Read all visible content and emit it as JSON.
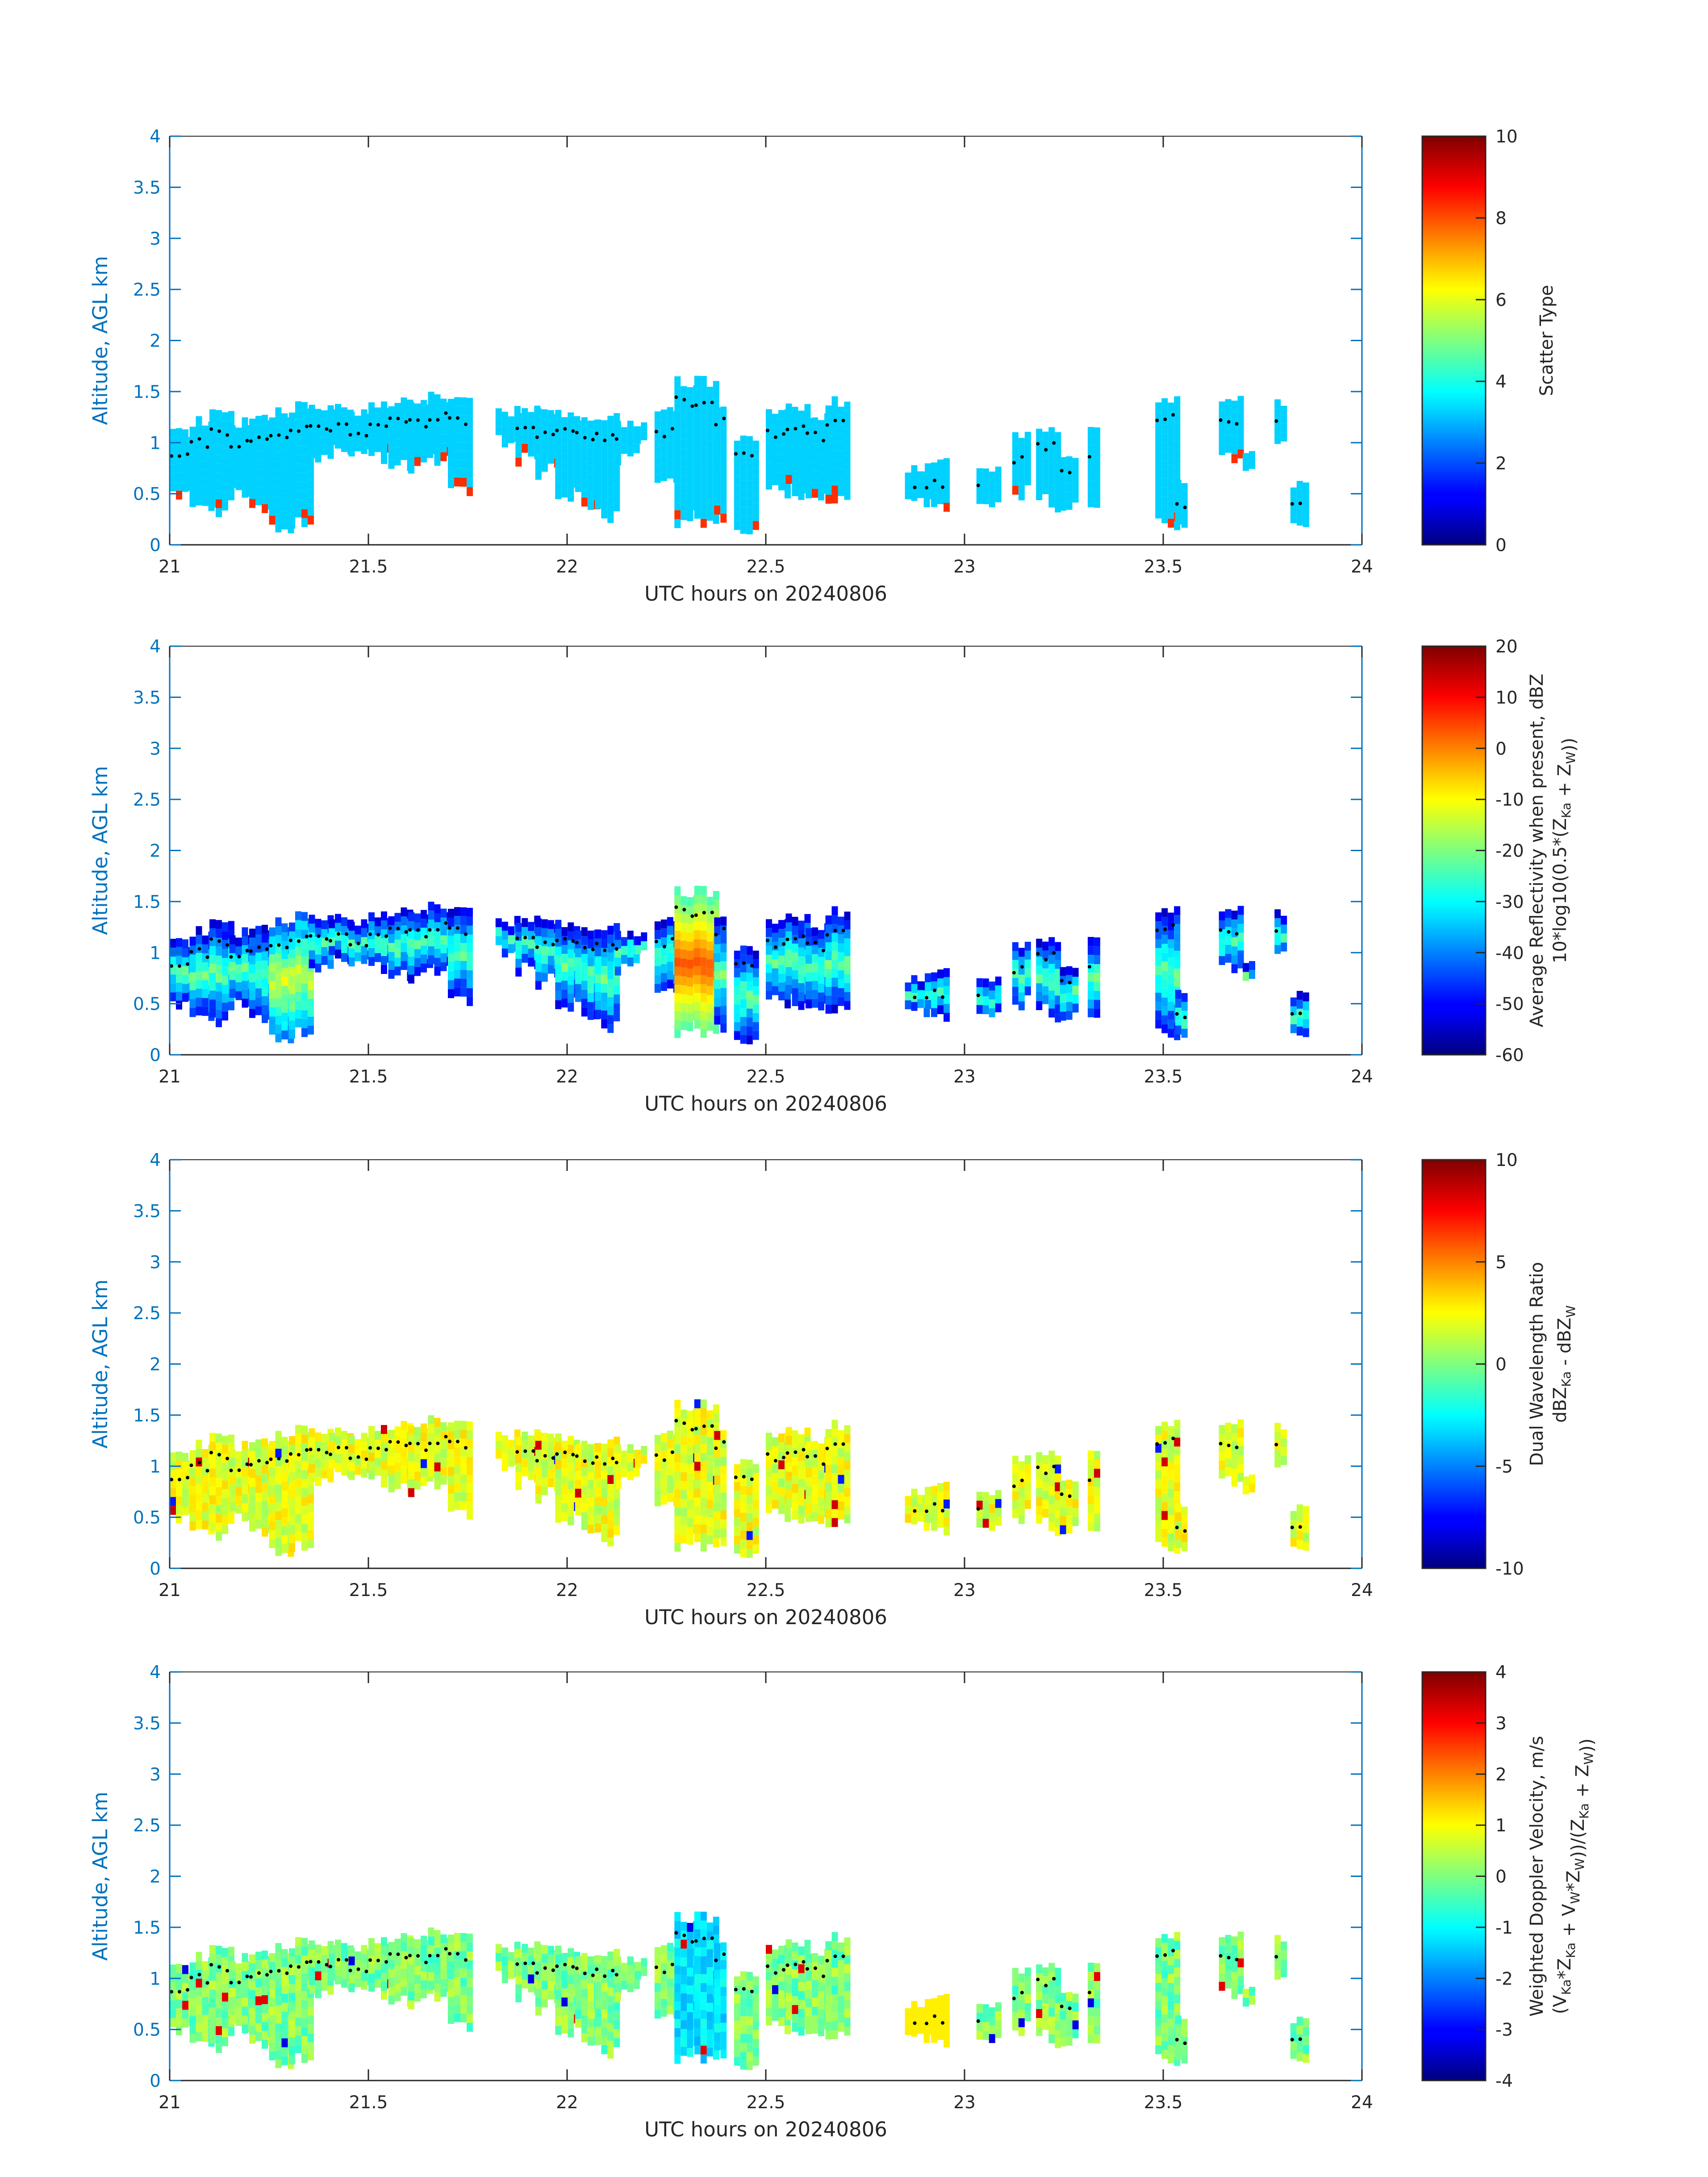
{
  "figure_title": "",
  "chart_data": [
    {
      "type": "heatmap",
      "title": "",
      "xlabel": "UTC hours on 20240806",
      "ylabel": "Altitude, AGL km",
      "xlim": [
        21,
        24
      ],
      "ylim": [
        0,
        4
      ],
      "xticks": [
        "21",
        "21.5",
        "22",
        "22.5",
        "23",
        "23.5",
        "24"
      ],
      "yticks": [
        "0",
        "0.5",
        "1",
        "1.5",
        "2",
        "2.5",
        "3",
        "3.5",
        "4"
      ],
      "colorbar": {
        "label_lines": [
          "Scatter Type"
        ],
        "range": [
          0,
          10
        ],
        "ticks": [
          "0",
          "2",
          "4",
          "6",
          "8",
          "10"
        ],
        "colormap": "jet"
      },
      "field": "scatter",
      "description_values": "Dominant value 3.3 (cyan) across cloud echo, isolated cells of 8 (orange) near the lower echo base",
      "dominant_value": 3.3,
      "secondary_value": 8.3
    },
    {
      "type": "heatmap",
      "title": "",
      "xlabel": "UTC hours on 20240806",
      "ylabel": "Altitude, AGL km",
      "xlim": [
        21,
        24
      ],
      "ylim": [
        0,
        4
      ],
      "xticks": [
        "21",
        "21.5",
        "22",
        "22.5",
        "23",
        "23.5",
        "24"
      ],
      "yticks": [
        "0",
        "0.5",
        "1",
        "1.5",
        "2",
        "2.5",
        "3",
        "3.5",
        "4"
      ],
      "colorbar": {
        "label_line1": "Average Reflectivity when present, dBZ",
        "label_line2_prefix": "10*log10(0.5*(Z",
        "label_sub1": "Ka",
        "label_mid": " + Z",
        "label_sub2": "W",
        "label_end": "))",
        "range": [
          -60,
          20
        ],
        "ticks": [
          "-60",
          "-50",
          "-40",
          "-30",
          "-20",
          "-10",
          "0",
          "10",
          "20"
        ],
        "colormap": "jet"
      },
      "field": "refl"
    },
    {
      "type": "heatmap",
      "title": "",
      "xlabel": "UTC hours on 20240806",
      "ylabel": "Altitude, AGL km",
      "xlim": [
        21,
        24
      ],
      "ylim": [
        0,
        4
      ],
      "xticks": [
        "21",
        "21.5",
        "22",
        "22.5",
        "23",
        "23.5",
        "24"
      ],
      "yticks": [
        "0",
        "0.5",
        "1",
        "1.5",
        "2",
        "2.5",
        "3",
        "3.5",
        "4"
      ],
      "colorbar": {
        "label_line1": "Dual Wavelength Ratio",
        "label_line2_prefix": "dBZ",
        "label_sub1": "Ka",
        "label_mid": " - dBZ",
        "label_sub2": "W",
        "label_end": "",
        "range": [
          -10,
          10
        ],
        "ticks": [
          "-10",
          "-5",
          "0",
          "5",
          "10"
        ],
        "colormap": "jet"
      },
      "field": "dwr"
    },
    {
      "type": "heatmap",
      "title": "",
      "xlabel": "UTC hours on 20240806",
      "ylabel": "Altitude, AGL km",
      "xlim": [
        21,
        24
      ],
      "ylim": [
        0,
        4
      ],
      "xticks": [
        "21",
        "21.5",
        "22",
        "22.5",
        "23",
        "23.5",
        "24"
      ],
      "yticks": [
        "0",
        "0.5",
        "1",
        "1.5",
        "2",
        "2.5",
        "3",
        "3.5",
        "4"
      ],
      "colorbar": {
        "label_line1": "Weighted Doppler Velocity, m/s",
        "label_complex": true,
        "range": [
          -4,
          4
        ],
        "ticks": [
          "-4",
          "-3",
          "-2",
          "-1",
          "0",
          "1",
          "2",
          "3",
          "4"
        ],
        "colormap": "jet"
      },
      "field": "vel"
    }
  ],
  "echo_columns": [
    {
      "t0": 21.0,
      "t1": 21.05,
      "base": 0.55,
      "top": 1.1
    },
    {
      "t0": 21.05,
      "t1": 21.1,
      "base": 0.45,
      "top": 1.2
    },
    {
      "t0": 21.1,
      "t1": 21.15,
      "base": 0.4,
      "top": 1.3
    },
    {
      "t0": 21.15,
      "t1": 21.2,
      "base": 0.55,
      "top": 1.2
    },
    {
      "t0": 21.2,
      "t1": 21.25,
      "base": 0.4,
      "top": 1.25
    },
    {
      "t0": 21.25,
      "t1": 21.3,
      "base": 0.2,
      "top": 1.3
    },
    {
      "t0": 21.3,
      "t1": 21.35,
      "base": 0.2,
      "top": 1.35
    },
    {
      "t0": 21.35,
      "t1": 21.4,
      "base": 0.9,
      "top": 1.35
    },
    {
      "t0": 21.4,
      "t1": 21.45,
      "base": 1.0,
      "top": 1.35
    },
    {
      "t0": 21.45,
      "t1": 21.5,
      "base": 0.95,
      "top": 1.3
    },
    {
      "t0": 21.5,
      "t1": 21.55,
      "base": 0.9,
      "top": 1.35
    },
    {
      "t0": 21.55,
      "t1": 21.6,
      "base": 0.85,
      "top": 1.4
    },
    {
      "t0": 21.6,
      "t1": 21.65,
      "base": 0.8,
      "top": 1.4
    },
    {
      "t0": 21.65,
      "t1": 21.7,
      "base": 0.9,
      "top": 1.45
    },
    {
      "t0": 21.7,
      "t1": 21.75,
      "base": 0.6,
      "top": 1.4
    },
    {
      "t0": 21.82,
      "t1": 21.87,
      "base": 1.05,
      "top": 1.3
    },
    {
      "t0": 21.87,
      "t1": 21.92,
      "base": 0.9,
      "top": 1.35
    },
    {
      "t0": 21.92,
      "t1": 21.97,
      "base": 0.75,
      "top": 1.3
    },
    {
      "t0": 21.97,
      "t1": 22.02,
      "base": 0.55,
      "top": 1.3
    },
    {
      "t0": 22.02,
      "t1": 22.07,
      "base": 0.45,
      "top": 1.25
    },
    {
      "t0": 22.07,
      "t1": 22.12,
      "base": 0.3,
      "top": 1.25
    },
    {
      "t0": 22.12,
      "t1": 22.17,
      "base": 0.9,
      "top": 1.2
    },
    {
      "t0": 22.17,
      "t1": 22.2,
      "base": 1.0,
      "top": 1.15
    },
    {
      "t0": 22.22,
      "t1": 22.27,
      "base": 0.65,
      "top": 1.3
    },
    {
      "t0": 22.27,
      "t1": 22.32,
      "base": 0.3,
      "top": 1.6
    },
    {
      "t0": 22.32,
      "t1": 22.37,
      "base": 0.2,
      "top": 1.6
    },
    {
      "t0": 22.37,
      "t1": 22.4,
      "base": 0.3,
      "top": 1.4
    },
    {
      "t0": 22.42,
      "t1": 22.47,
      "base": 0.2,
      "top": 1.05
    },
    {
      "t0": 22.5,
      "t1": 22.55,
      "base": 0.6,
      "top": 1.3
    },
    {
      "t0": 22.55,
      "t1": 22.6,
      "base": 0.55,
      "top": 1.35
    },
    {
      "t0": 22.6,
      "t1": 22.65,
      "base": 0.5,
      "top": 1.25
    },
    {
      "t0": 22.65,
      "t1": 22.7,
      "base": 0.5,
      "top": 1.4
    },
    {
      "t0": 22.85,
      "t1": 22.9,
      "base": 0.45,
      "top": 0.75
    },
    {
      "t0": 22.9,
      "t1": 22.95,
      "base": 0.45,
      "top": 0.8
    },
    {
      "t0": 23.03,
      "t1": 23.08,
      "base": 0.45,
      "top": 0.75
    },
    {
      "t0": 23.12,
      "t1": 23.16,
      "base": 0.55,
      "top": 1.05
    },
    {
      "t0": 23.18,
      "t1": 23.24,
      "base": 0.45,
      "top": 1.15
    },
    {
      "t0": 23.24,
      "t1": 23.28,
      "base": 0.4,
      "top": 0.9
    },
    {
      "t0": 23.31,
      "t1": 23.33,
      "base": 0.45,
      "top": 1.1
    },
    {
      "t0": 23.48,
      "t1": 23.53,
      "base": 0.25,
      "top": 1.45
    },
    {
      "t0": 23.53,
      "t1": 23.56,
      "base": 0.2,
      "top": 0.6
    },
    {
      "t0": 23.64,
      "t1": 23.7,
      "base": 0.9,
      "top": 1.4
    },
    {
      "t0": 23.7,
      "t1": 23.72,
      "base": 0.75,
      "top": 0.9
    },
    {
      "t0": 23.78,
      "t1": 23.8,
      "base": 1.05,
      "top": 1.4
    },
    {
      "t0": 23.82,
      "t1": 23.86,
      "base": 0.2,
      "top": 0.6
    }
  ],
  "melting_layer_dots": "black dotted trace along echo top, ~0.9–1.3 km"
}
